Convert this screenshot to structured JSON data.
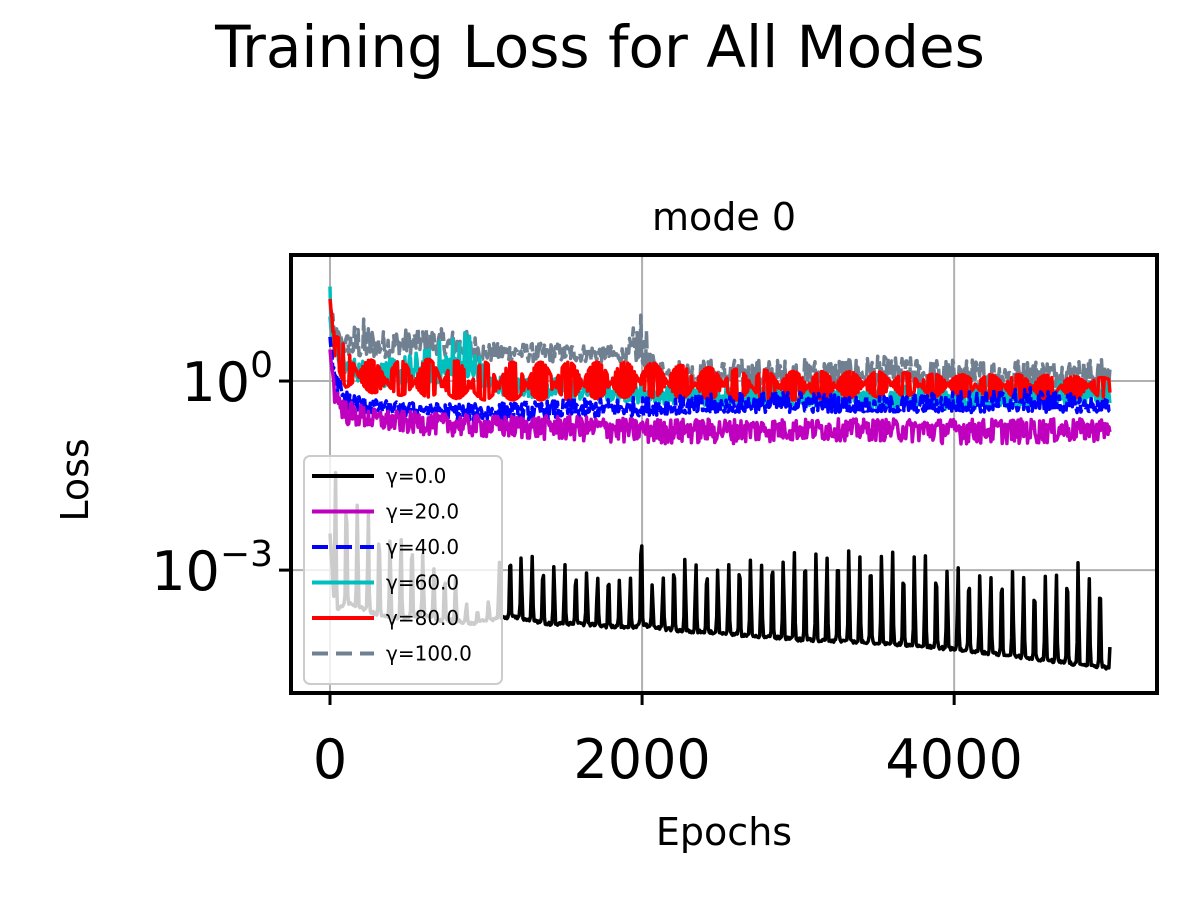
{
  "figure_title": "Training Loss for All Modes",
  "chart_data": {
    "type": "line",
    "title": "mode 0",
    "xlabel": "Epochs",
    "ylabel": "Loss",
    "xlim": [
      -250,
      5300
    ],
    "ylog": true,
    "ylim_log10": [
      -4.95,
      2.0
    ],
    "x_ticks": [
      {
        "value": 0,
        "label": "0"
      },
      {
        "value": 2000,
        "label": "2000"
      },
      {
        "value": 4000,
        "label": "4000"
      }
    ],
    "y_ticks": [
      {
        "value_log10": 0,
        "base": "10",
        "exp": "0"
      },
      {
        "value_log10": -3,
        "base": "10",
        "exp": "−3"
      }
    ],
    "grid": true,
    "legend_position": "lower-left",
    "series": [
      {
        "name": "γ=0.0",
        "color": "#000000",
        "dash": "solid",
        "x": [
          0,
          30,
          100,
          200,
          300,
          400,
          500,
          600,
          700,
          800,
          900,
          1000,
          1100,
          1200,
          1400,
          1600,
          1800,
          1950,
          2000,
          2050,
          2200,
          2500,
          3000,
          3500,
          4000,
          4500,
          4800,
          5000
        ],
        "baseline_log10": [
          -2.4,
          -3.7,
          -3.5,
          -3.6,
          -3.7,
          -3.75,
          -3.75,
          -3.7,
          -3.8,
          -3.8,
          -3.85,
          -3.8,
          -3.75,
          -3.75,
          -3.85,
          -3.85,
          -3.9,
          -3.9,
          -3.85,
          -3.9,
          -3.95,
          -4.0,
          -4.1,
          -4.15,
          -4.25,
          -4.4,
          -4.5,
          -4.55
        ],
        "peak_log10": [
          -2.4,
          -1.0,
          -1.6,
          -2.0,
          -2.1,
          -2.4,
          -2.2,
          -2.6,
          -3.0,
          -3.0,
          -3.6,
          -3.6,
          -2.65,
          -2.6,
          -2.8,
          -2.9,
          -3.0,
          -3.1,
          -2.1,
          -3.2,
          -2.8,
          -2.8,
          -2.6,
          -2.6,
          -2.8,
          -3.0,
          -2.8,
          -3.1
        ]
      },
      {
        "name": "γ=20.0",
        "color": "#bf00bf",
        "dash": "solid",
        "x": [
          0,
          30,
          100,
          300,
          600,
          1000,
          1500,
          2000,
          2500,
          3000,
          3500,
          4000,
          4500,
          5000
        ],
        "baseline_log10": [
          0.5,
          -0.2,
          -0.5,
          -0.6,
          -0.65,
          -0.7,
          -0.7,
          -0.75,
          -0.75,
          -0.75,
          -0.75,
          -0.75,
          -0.75,
          -0.75
        ],
        "peak_log10": [
          0.5,
          -0.05,
          -0.3,
          -0.45,
          -0.5,
          -0.55,
          -0.55,
          -0.6,
          -0.6,
          -0.6,
          -0.6,
          -0.6,
          -0.6,
          -0.6
        ],
        "dip_log10": [
          0.5,
          -0.35,
          -0.7,
          -0.8,
          -0.85,
          -0.9,
          -0.95,
          -1.0,
          -1.0,
          -0.95,
          -0.95,
          -1.0,
          -1.0,
          -0.95
        ]
      },
      {
        "name": "γ=40.0",
        "color": "#0000ff",
        "dash": "dashed",
        "x": [
          0,
          30,
          100,
          300,
          600,
          1000,
          1500,
          2000,
          2500,
          3000,
          3500,
          4000,
          4500,
          5000
        ],
        "baseline_log10": [
          0.7,
          0.0,
          -0.3,
          -0.4,
          -0.45,
          -0.5,
          -0.45,
          -0.45,
          -0.45,
          -0.35,
          -0.45,
          -0.4,
          -0.35,
          -0.45
        ],
        "peak_log10": [
          0.7,
          0.2,
          -0.15,
          -0.3,
          -0.35,
          -0.35,
          -0.3,
          -0.25,
          -0.2,
          -0.15,
          -0.25,
          -0.15,
          -0.1,
          -0.3
        ],
        "dip_log10": [
          0.7,
          -0.2,
          -0.45,
          -0.55,
          -0.6,
          -0.65,
          -0.6,
          -0.55,
          -0.5,
          -0.5,
          -0.5,
          -0.5,
          -0.5,
          -0.5
        ]
      },
      {
        "name": "γ=60.0",
        "color": "#00bfbf",
        "dash": "solid",
        "x": [
          0,
          30,
          100,
          300,
          600,
          900,
          1000,
          1500,
          2000,
          2500,
          3000,
          3500,
          4000,
          4500,
          5000
        ],
        "baseline_log10": [
          1.0,
          0.5,
          0.2,
          0.1,
          0.1,
          0.15,
          -0.05,
          -0.15,
          -0.2,
          -0.3,
          -0.25,
          -0.35,
          -0.3,
          -0.25,
          -0.2
        ],
        "peak_log10": [
          1.7,
          0.7,
          0.4,
          0.3,
          0.5,
          0.95,
          0.1,
          0.05,
          -0.05,
          -0.1,
          -0.05,
          -0.1,
          -0.05,
          0.0,
          0.0
        ],
        "dip_log10": [
          1.0,
          0.3,
          0.05,
          -0.1,
          -0.05,
          0.0,
          -0.2,
          -0.3,
          -0.35,
          -0.4,
          -0.4,
          -0.45,
          -0.45,
          -0.4,
          -0.35
        ]
      },
      {
        "name": "γ=80.0",
        "color": "#ff0000",
        "dash": "solid",
        "x": [
          0,
          30,
          100,
          300,
          600,
          1000,
          1500,
          2000,
          2500,
          3000,
          3500,
          4000,
          4500,
          5000
        ],
        "baseline_log10": [
          1.3,
          0.5,
          0.15,
          0.0,
          -0.05,
          -0.1,
          -0.05,
          0.0,
          -0.05,
          -0.1,
          -0.05,
          -0.05,
          -0.1,
          -0.05
        ],
        "peak_log10": [
          1.3,
          0.9,
          0.5,
          0.3,
          0.35,
          0.3,
          0.3,
          0.3,
          0.2,
          0.15,
          0.15,
          0.1,
          0.1,
          0.05
        ],
        "dip_log10": [
          1.3,
          0.3,
          -0.1,
          -0.2,
          -0.25,
          -0.3,
          -0.3,
          -0.25,
          -0.3,
          -0.3,
          -0.25,
          -0.25,
          -0.3,
          -0.25
        ]
      },
      {
        "name": "γ=100.0",
        "color": "#708090",
        "dash": "dashed",
        "x": [
          0,
          30,
          100,
          200,
          300,
          600,
          900,
          1000,
          1500,
          1900,
          2000,
          2050,
          2100,
          2500,
          3000,
          3500,
          4000,
          4500,
          5000
        ],
        "baseline_log10": [
          0.9,
          0.7,
          0.55,
          0.5,
          0.55,
          0.6,
          0.5,
          0.45,
          0.45,
          0.4,
          0.4,
          0.3,
          0.1,
          0.05,
          0.05,
          0.1,
          0.05,
          0.1,
          0.1
        ],
        "peak_log10": [
          1.3,
          0.9,
          0.75,
          1.05,
          0.8,
          0.85,
          0.8,
          0.6,
          0.6,
          0.55,
          1.25,
          0.45,
          0.35,
          0.35,
          0.35,
          0.4,
          0.35,
          0.35,
          0.35
        ],
        "dip_log10": [
          0.9,
          0.5,
          0.4,
          0.35,
          0.35,
          0.45,
          0.35,
          0.3,
          0.3,
          0.3,
          0.3,
          0.0,
          -0.05,
          -0.1,
          -0.15,
          -0.1,
          -0.15,
          -0.1,
          -0.1
        ]
      }
    ]
  }
}
